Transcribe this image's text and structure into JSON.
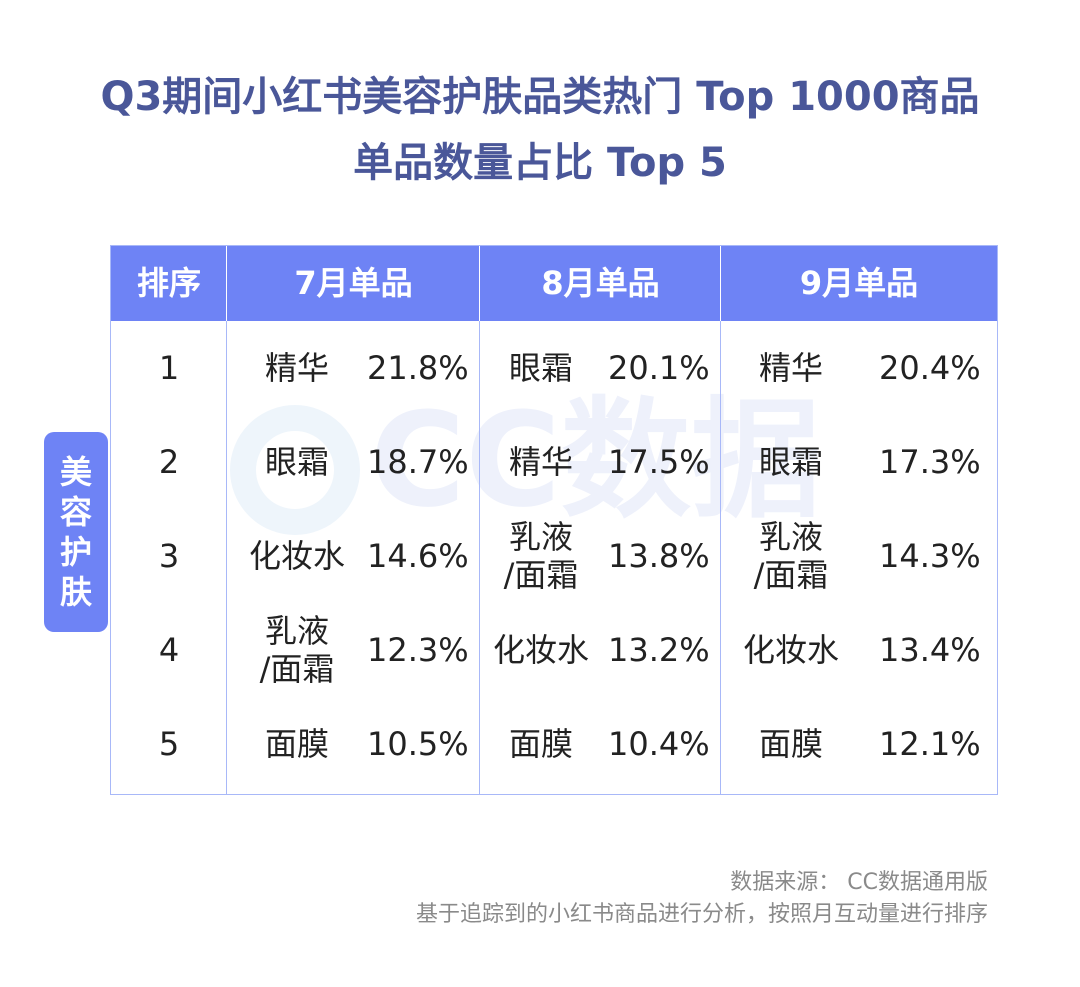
{
  "title": {
    "line1": "Q3期间小红书美容护肤品类热门 Top 1000商品",
    "line2": "单品数量占比 Top 5"
  },
  "watermark": "CC数据",
  "side_tag": [
    "美",
    "容",
    "护",
    "肤"
  ],
  "colors": {
    "title": "#4a5799",
    "header_bg": "#6e83f5",
    "border": "#a8b8f8",
    "footer_text": "#8a8a8a"
  },
  "chart_data": {
    "type": "table",
    "columns": [
      "排序",
      "7月单品",
      "8月单品",
      "9月单品"
    ],
    "rows": [
      {
        "rank": "1",
        "m7": {
          "item": "精华",
          "pct": "21.8%"
        },
        "m8": {
          "item": "眼霜",
          "pct": "20.1%"
        },
        "m9": {
          "item": "精华",
          "pct": "20.4%"
        }
      },
      {
        "rank": "2",
        "m7": {
          "item": "眼霜",
          "pct": "18.7%"
        },
        "m8": {
          "item": "精华",
          "pct": "17.5%"
        },
        "m9": {
          "item": "眼霜",
          "pct": "17.3%"
        }
      },
      {
        "rank": "3",
        "m7": {
          "item": "化妆水",
          "pct": "14.6%"
        },
        "m8": {
          "item": "乳液\n/面霜",
          "pct": "13.8%"
        },
        "m9": {
          "item": "乳液\n/面霜",
          "pct": "14.3%"
        }
      },
      {
        "rank": "4",
        "m7": {
          "item": "乳液\n/面霜",
          "pct": "12.3%"
        },
        "m8": {
          "item": "化妆水",
          "pct": "13.2%"
        },
        "m9": {
          "item": "化妆水",
          "pct": "13.4%"
        }
      },
      {
        "rank": "5",
        "m7": {
          "item": "面膜",
          "pct": "10.5%"
        },
        "m8": {
          "item": "面膜",
          "pct": "10.4%"
        },
        "m9": {
          "item": "面膜",
          "pct": "12.1%"
        }
      }
    ]
  },
  "footer": {
    "source": "数据来源： CC数据通用版",
    "note": "基于追踪到的小红书商品进行分析，按照月互动量进行排序"
  }
}
